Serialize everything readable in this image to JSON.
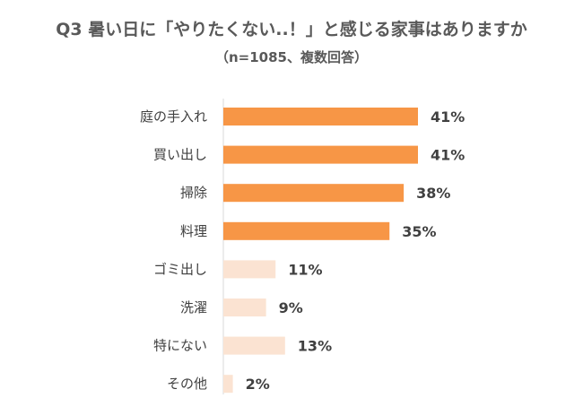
{
  "chart_data": {
    "type": "bar",
    "orientation": "horizontal",
    "title": "Q3 暑い日に「やりたくない..！」と感じる家事はありますか",
    "subtitle": "（n=1085、複数回答）",
    "categories": [
      "庭の手入れ",
      "買い出し",
      "掃除",
      "料理",
      "ゴミ出し",
      "洗濯",
      "特にない",
      "その他"
    ],
    "values": [
      41,
      41,
      38,
      35,
      11,
      9,
      13,
      2
    ],
    "value_labels": [
      "41%",
      "41%",
      "38%",
      "35%",
      "11%",
      "9%",
      "13%",
      "2%"
    ],
    "unit": "%",
    "xlim": [
      0,
      41
    ],
    "grid": false,
    "colors": {
      "highlight": "#F79646",
      "muted": "#FBE3D2"
    },
    "highlight_count": 4
  }
}
